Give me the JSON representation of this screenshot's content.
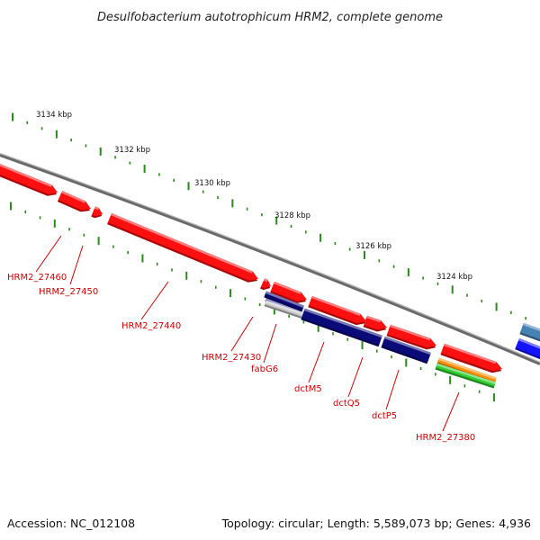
{
  "title": "Desulfobacterium autotrophicum HRM2, complete genome",
  "footer": {
    "accession": "Accession: NC_012108",
    "summary": "Topology: circular; Length: 5,589,073 bp; Genes: 4,936"
  },
  "ruler": {
    "tick_color": "#2a8a1a",
    "labels": [
      "3134 kbp",
      "3132 kbp",
      "3130 kbp",
      "3128 kbp",
      "3126 kbp",
      "3124 kbp"
    ]
  },
  "gene_labels": [
    "HRM2_27460",
    "HRM2_27450",
    "HRM2_27440",
    "HRM2_27430",
    "fabG6",
    "dctM5",
    "dctQ5",
    "dctP5",
    "HRM2_27380"
  ],
  "colors": {
    "gene_red": "#ff1010",
    "gene_navy": "#0a0a78",
    "gene_blue": "#1414ff",
    "gene_steel": "#4682b4",
    "gene_lavender": "#9898d8",
    "gene_orange": "#ff8c00",
    "gene_green": "#32cd32",
    "backbone": "#808080",
    "label_red": "#cc0000"
  }
}
